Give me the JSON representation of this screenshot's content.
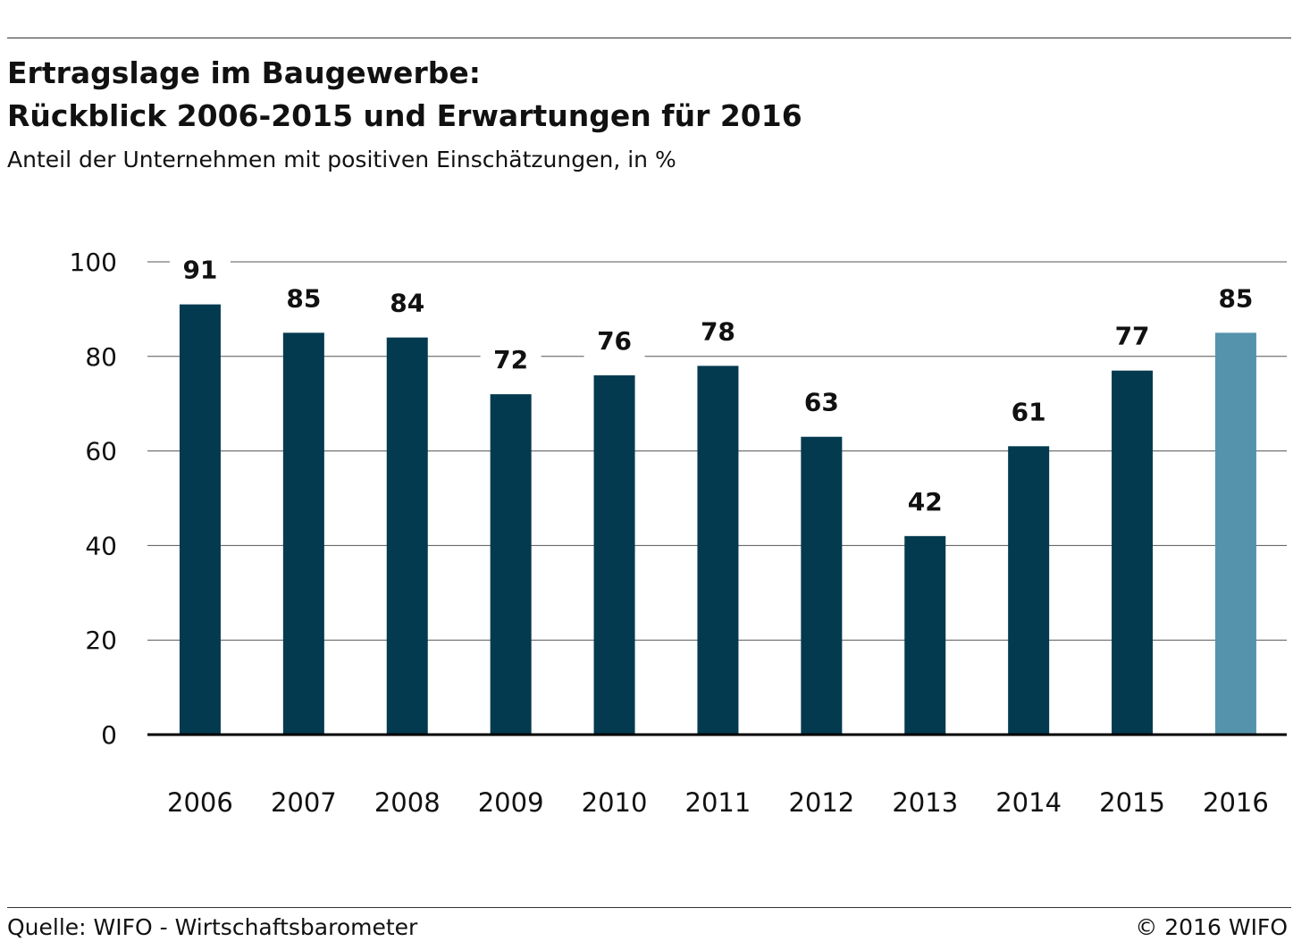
{
  "header": {
    "title_line1": "Ertragslage im Baugewerbe:",
    "title_line2": "Rückblick 2006-2015 und Erwartungen für 2016",
    "subtitle": "Anteil der Unternehmen mit positiven Einschätzungen, in %"
  },
  "footer": {
    "source": "Quelle: WIFO - Wirtschaftsbarometer",
    "copyright": "© 2016 WIFO"
  },
  "chart_data": {
    "type": "bar",
    "categories": [
      "2006",
      "2007",
      "2008",
      "2009",
      "2010",
      "2011",
      "2012",
      "2013",
      "2014",
      "2015",
      "2016"
    ],
    "values": [
      91,
      85,
      84,
      72,
      76,
      78,
      63,
      42,
      61,
      77,
      85
    ],
    "value_labels": [
      "91",
      "85",
      "84",
      "72",
      "76",
      "78",
      "63",
      "42",
      "61",
      "77",
      "85"
    ],
    "ylim": [
      0,
      100
    ],
    "yticks": [
      0,
      20,
      40,
      60,
      80,
      100
    ],
    "grid": true,
    "colors": {
      "actual": "#033a4f",
      "expected": "#5593ac",
      "grid": "#555555",
      "axis": "#000000"
    },
    "expected_categories": [
      "2016"
    ]
  }
}
